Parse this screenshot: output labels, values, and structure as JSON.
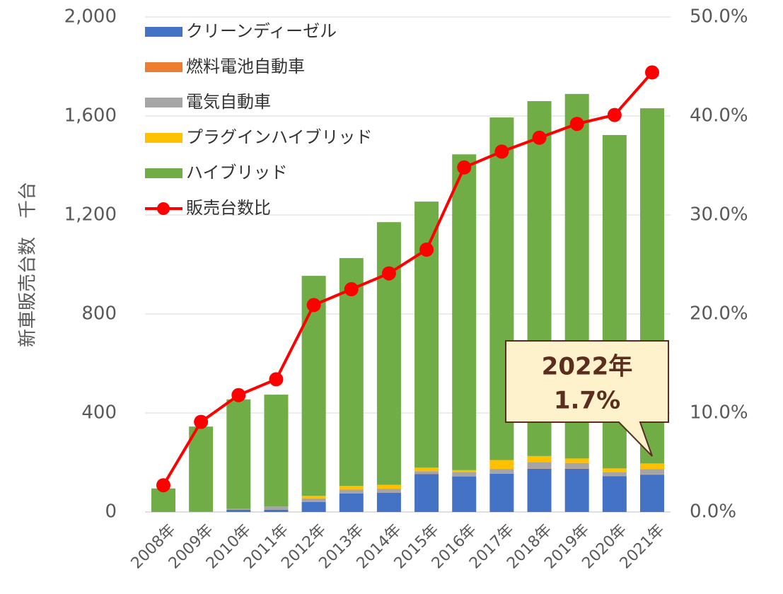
{
  "chart_data": {
    "type": "bar",
    "y_label": "新車販売台数　千台",
    "categories": [
      "2008年",
      "2009年",
      "2010年",
      "2011年",
      "2012年",
      "2013年",
      "2014年",
      "2015年",
      "2016年",
      "2017年",
      "2018年",
      "2019年",
      "2020年",
      "2021年"
    ],
    "series": [
      {
        "name": "クリーンディーゼル",
        "color": "#4472c4",
        "values": [
          0,
          0,
          9,
          9,
          40,
          75,
          78,
          153,
          144,
          155,
          175,
          175,
          145,
          150
        ]
      },
      {
        "name": "燃料電池自動車",
        "color": "#ed7d31",
        "values": [
          0,
          0,
          0,
          0,
          0,
          0,
          0,
          1,
          1,
          1,
          1,
          1,
          1,
          2
        ]
      },
      {
        "name": "電気自動車",
        "color": "#a5a5a5",
        "values": [
          0,
          1,
          3,
          13,
          15,
          15,
          16,
          11,
          15,
          18,
          26,
          22,
          15,
          21
        ]
      },
      {
        "name": "プラグインハイブリッド",
        "color": "#ffc000",
        "values": [
          0,
          0,
          0,
          0,
          10,
          15,
          16,
          14,
          9,
          36,
          24,
          18,
          15,
          23
        ]
      },
      {
        "name": "ハイブリッド",
        "color": "#70ad47",
        "values": [
          95,
          344,
          443,
          452,
          889,
          921,
          1061,
          1075,
          1276,
          1384,
          1434,
          1473,
          1347,
          1435
        ]
      },
      {
        "name": "販売台数比",
        "type": "line",
        "axis": "y2",
        "color": "#ff0000",
        "values": [
          2.7,
          9.1,
          11.8,
          13.4,
          20.9,
          22.5,
          24.1,
          26.5,
          34.8,
          36.4,
          37.8,
          39.2,
          40.1,
          44.4
        ]
      }
    ],
    "ylim": [
      0,
      2000
    ],
    "yticks": [
      0,
      400,
      800,
      {
        "value": 1200,
        "label": "1,200"
      },
      {
        "value": 1600,
        "label": "1,600"
      },
      {
        "value": 2000,
        "label": "2,000"
      }
    ],
    "y2lim": [
      0,
      50
    ],
    "y2ticks": [
      {
        "value": 0,
        "label": "0.0%"
      },
      {
        "value": 10,
        "label": "10.0%"
      },
      {
        "value": 20,
        "label": "20.0%"
      },
      {
        "value": 30,
        "label": "30.0%"
      },
      {
        "value": 40,
        "label": "40.0%"
      },
      {
        "value": 50,
        "label": "50.0%"
      }
    ],
    "grid": true,
    "legend": "upper-left",
    "annotation": {
      "lines": [
        "2022年",
        "1.7%"
      ]
    }
  }
}
